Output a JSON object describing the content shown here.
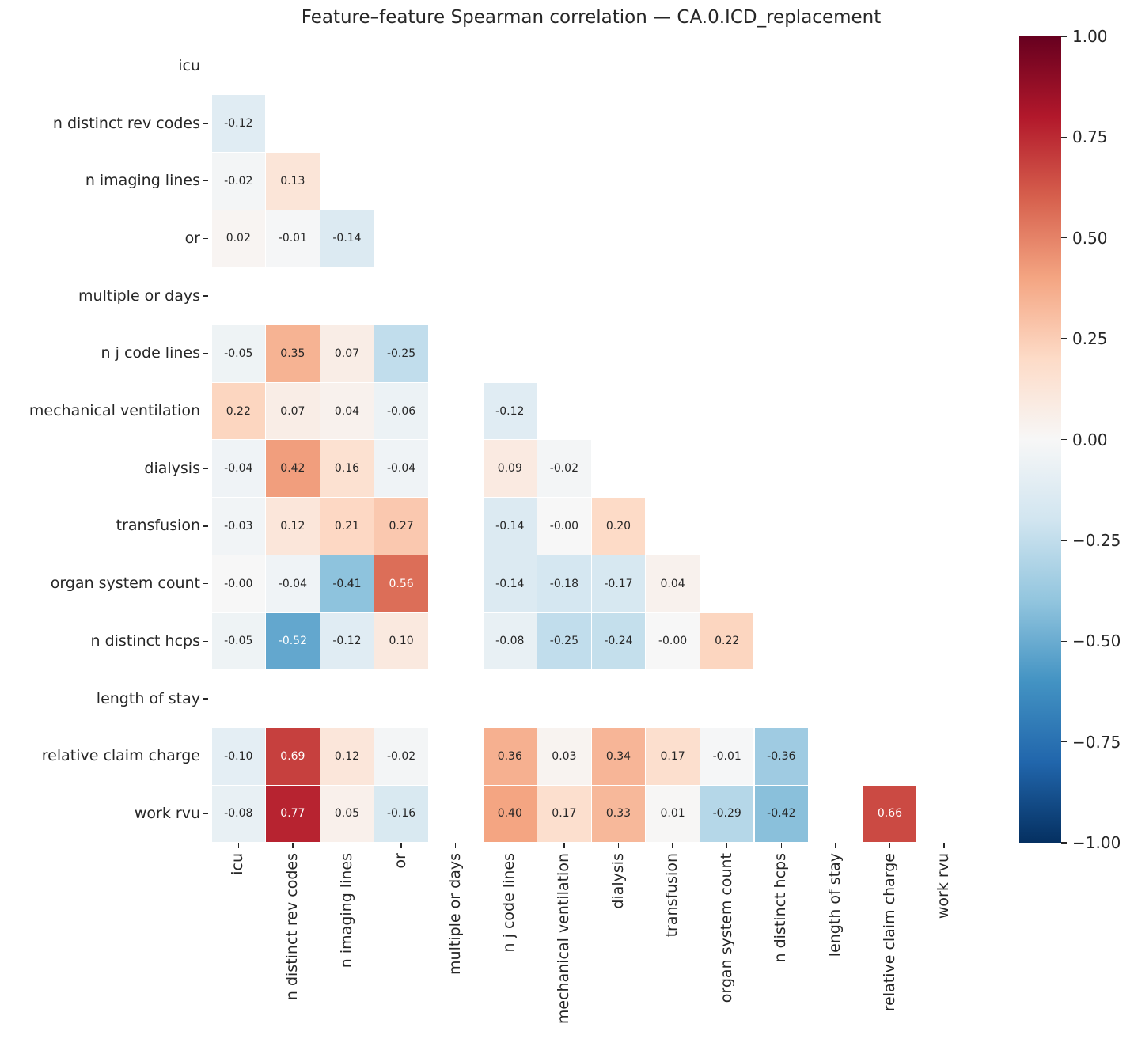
{
  "title": {
    "text": "Feature–feature Spearman correlation — CA.0.ICD_replacement"
  },
  "chart_data": {
    "type": "heatmap",
    "subtype": "correlation-matrix-lower-triangle",
    "correlation_method": "Spearman",
    "title": "Feature–feature Spearman correlation — CA.0.ICD_replacement",
    "labels": [
      "icu",
      "n distinct rev codes",
      "n imaging lines",
      "or",
      "multiple or days",
      "n j code lines",
      "mechanical ventilation",
      "dialysis",
      "transfusion",
      "organ system count",
      "n distinct hcps",
      "length of stay",
      "relative claim charge",
      "work rvu"
    ],
    "matrix": [
      [
        null,
        null,
        null,
        null,
        null,
        null,
        null,
        null,
        null,
        null,
        null,
        null,
        null,
        null
      ],
      [
        "-0.12",
        null,
        null,
        null,
        null,
        null,
        null,
        null,
        null,
        null,
        null,
        null,
        null,
        null
      ],
      [
        "-0.02",
        "0.13",
        null,
        null,
        null,
        null,
        null,
        null,
        null,
        null,
        null,
        null,
        null,
        null
      ],
      [
        "0.02",
        "-0.01",
        "-0.14",
        null,
        null,
        null,
        null,
        null,
        null,
        null,
        null,
        null,
        null,
        null
      ],
      [
        null,
        null,
        null,
        null,
        null,
        null,
        null,
        null,
        null,
        null,
        null,
        null,
        null,
        null
      ],
      [
        "-0.05",
        "0.35",
        "0.07",
        "-0.25",
        null,
        null,
        null,
        null,
        null,
        null,
        null,
        null,
        null,
        null
      ],
      [
        "0.22",
        "0.07",
        "0.04",
        "-0.06",
        null,
        "-0.12",
        null,
        null,
        null,
        null,
        null,
        null,
        null,
        null
      ],
      [
        "-0.04",
        "0.42",
        "0.16",
        "-0.04",
        null,
        "0.09",
        "-0.02",
        null,
        null,
        null,
        null,
        null,
        null,
        null
      ],
      [
        "-0.03",
        "0.12",
        "0.21",
        "0.27",
        null,
        "-0.14",
        "-0.00",
        "0.20",
        null,
        null,
        null,
        null,
        null,
        null
      ],
      [
        "-0.00",
        "-0.04",
        "-0.41",
        "0.56",
        null,
        "-0.14",
        "-0.18",
        "-0.17",
        "0.04",
        null,
        null,
        null,
        null,
        null
      ],
      [
        "-0.05",
        "-0.52",
        "-0.12",
        "0.10",
        null,
        "-0.08",
        "-0.25",
        "-0.24",
        "-0.00",
        "0.22",
        null,
        null,
        null,
        null
      ],
      [
        null,
        null,
        null,
        null,
        null,
        null,
        null,
        null,
        null,
        null,
        null,
        null,
        null,
        null
      ],
      [
        "-0.10",
        "0.69",
        "0.12",
        "-0.02",
        null,
        "0.36",
        "0.03",
        "0.34",
        "0.17",
        "-0.01",
        "-0.36",
        null,
        null,
        null
      ],
      [
        "-0.08",
        "0.77",
        "0.05",
        "-0.16",
        null,
        "0.40",
        "0.17",
        "0.33",
        "0.01",
        "-0.29",
        "-0.42",
        null,
        "0.66",
        null
      ]
    ],
    "vmin": -1,
    "vmax": 1,
    "colormap": {
      "name": "RdBu_r",
      "anchor_values": [
        -1,
        -0.8,
        -0.6,
        -0.4,
        -0.2,
        0,
        0.2,
        0.4,
        0.6,
        0.8,
        1
      ],
      "anchor_colors": [
        "#053061",
        "#2166ac",
        "#4393c3",
        "#92c5de",
        "#d1e5f0",
        "#f7f7f7",
        "#fddbc7",
        "#f4a582",
        "#d6604d",
        "#b2182b",
        "#67001f"
      ]
    },
    "colorbar_tick_values": [
      1,
      0.75,
      0.5,
      0.25,
      0,
      -0.25,
      -0.5,
      -0.75,
      -1
    ],
    "colorbar_tick_labels": [
      "1.00",
      "0.75",
      "0.50",
      "0.25",
      "0.00",
      "−0.25",
      "−0.50",
      "−0.75",
      "−1.00"
    ],
    "annotation_colors": {
      "dark": "#262626",
      "light": "#ffffff"
    },
    "axis_text_color": "#262626",
    "cell_gap_color": "#ffffff",
    "grid": false,
    "legend_position": "colorbar-right"
  }
}
